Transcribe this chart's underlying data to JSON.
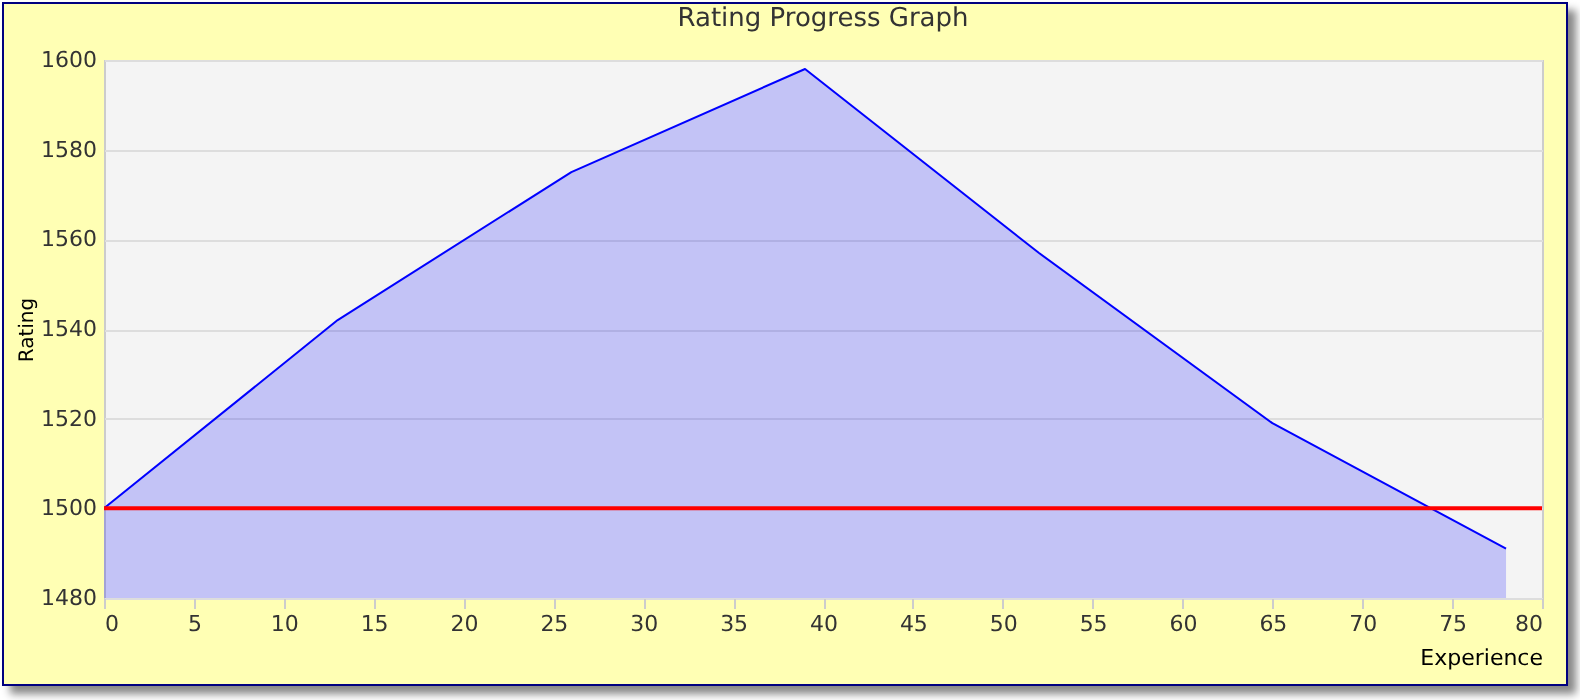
{
  "chart_data": {
    "type": "area",
    "title": "Rating Progress Graph",
    "xlabel": "Experience",
    "ylabel": "Rating",
    "x": [
      0,
      13,
      26,
      39,
      52,
      65,
      78
    ],
    "series": [
      {
        "color": "#0000ff",
        "values": [
          1500,
          1542,
          1575,
          1598,
          1557,
          1519,
          1491
        ]
      }
    ],
    "xlim": [
      0,
      80
    ],
    "xticks": [
      0,
      5,
      10,
      15,
      20,
      25,
      30,
      35,
      40,
      45,
      50,
      55,
      60,
      65,
      70,
      75,
      80
    ],
    "ylim": [
      1480,
      1600
    ],
    "yticks": [
      1480,
      1500,
      1520,
      1540,
      1560,
      1580,
      1600
    ],
    "ref_lines": [
      {
        "axis": "y",
        "value": 1500,
        "color": "#ff0000"
      }
    ],
    "grid": "y"
  }
}
